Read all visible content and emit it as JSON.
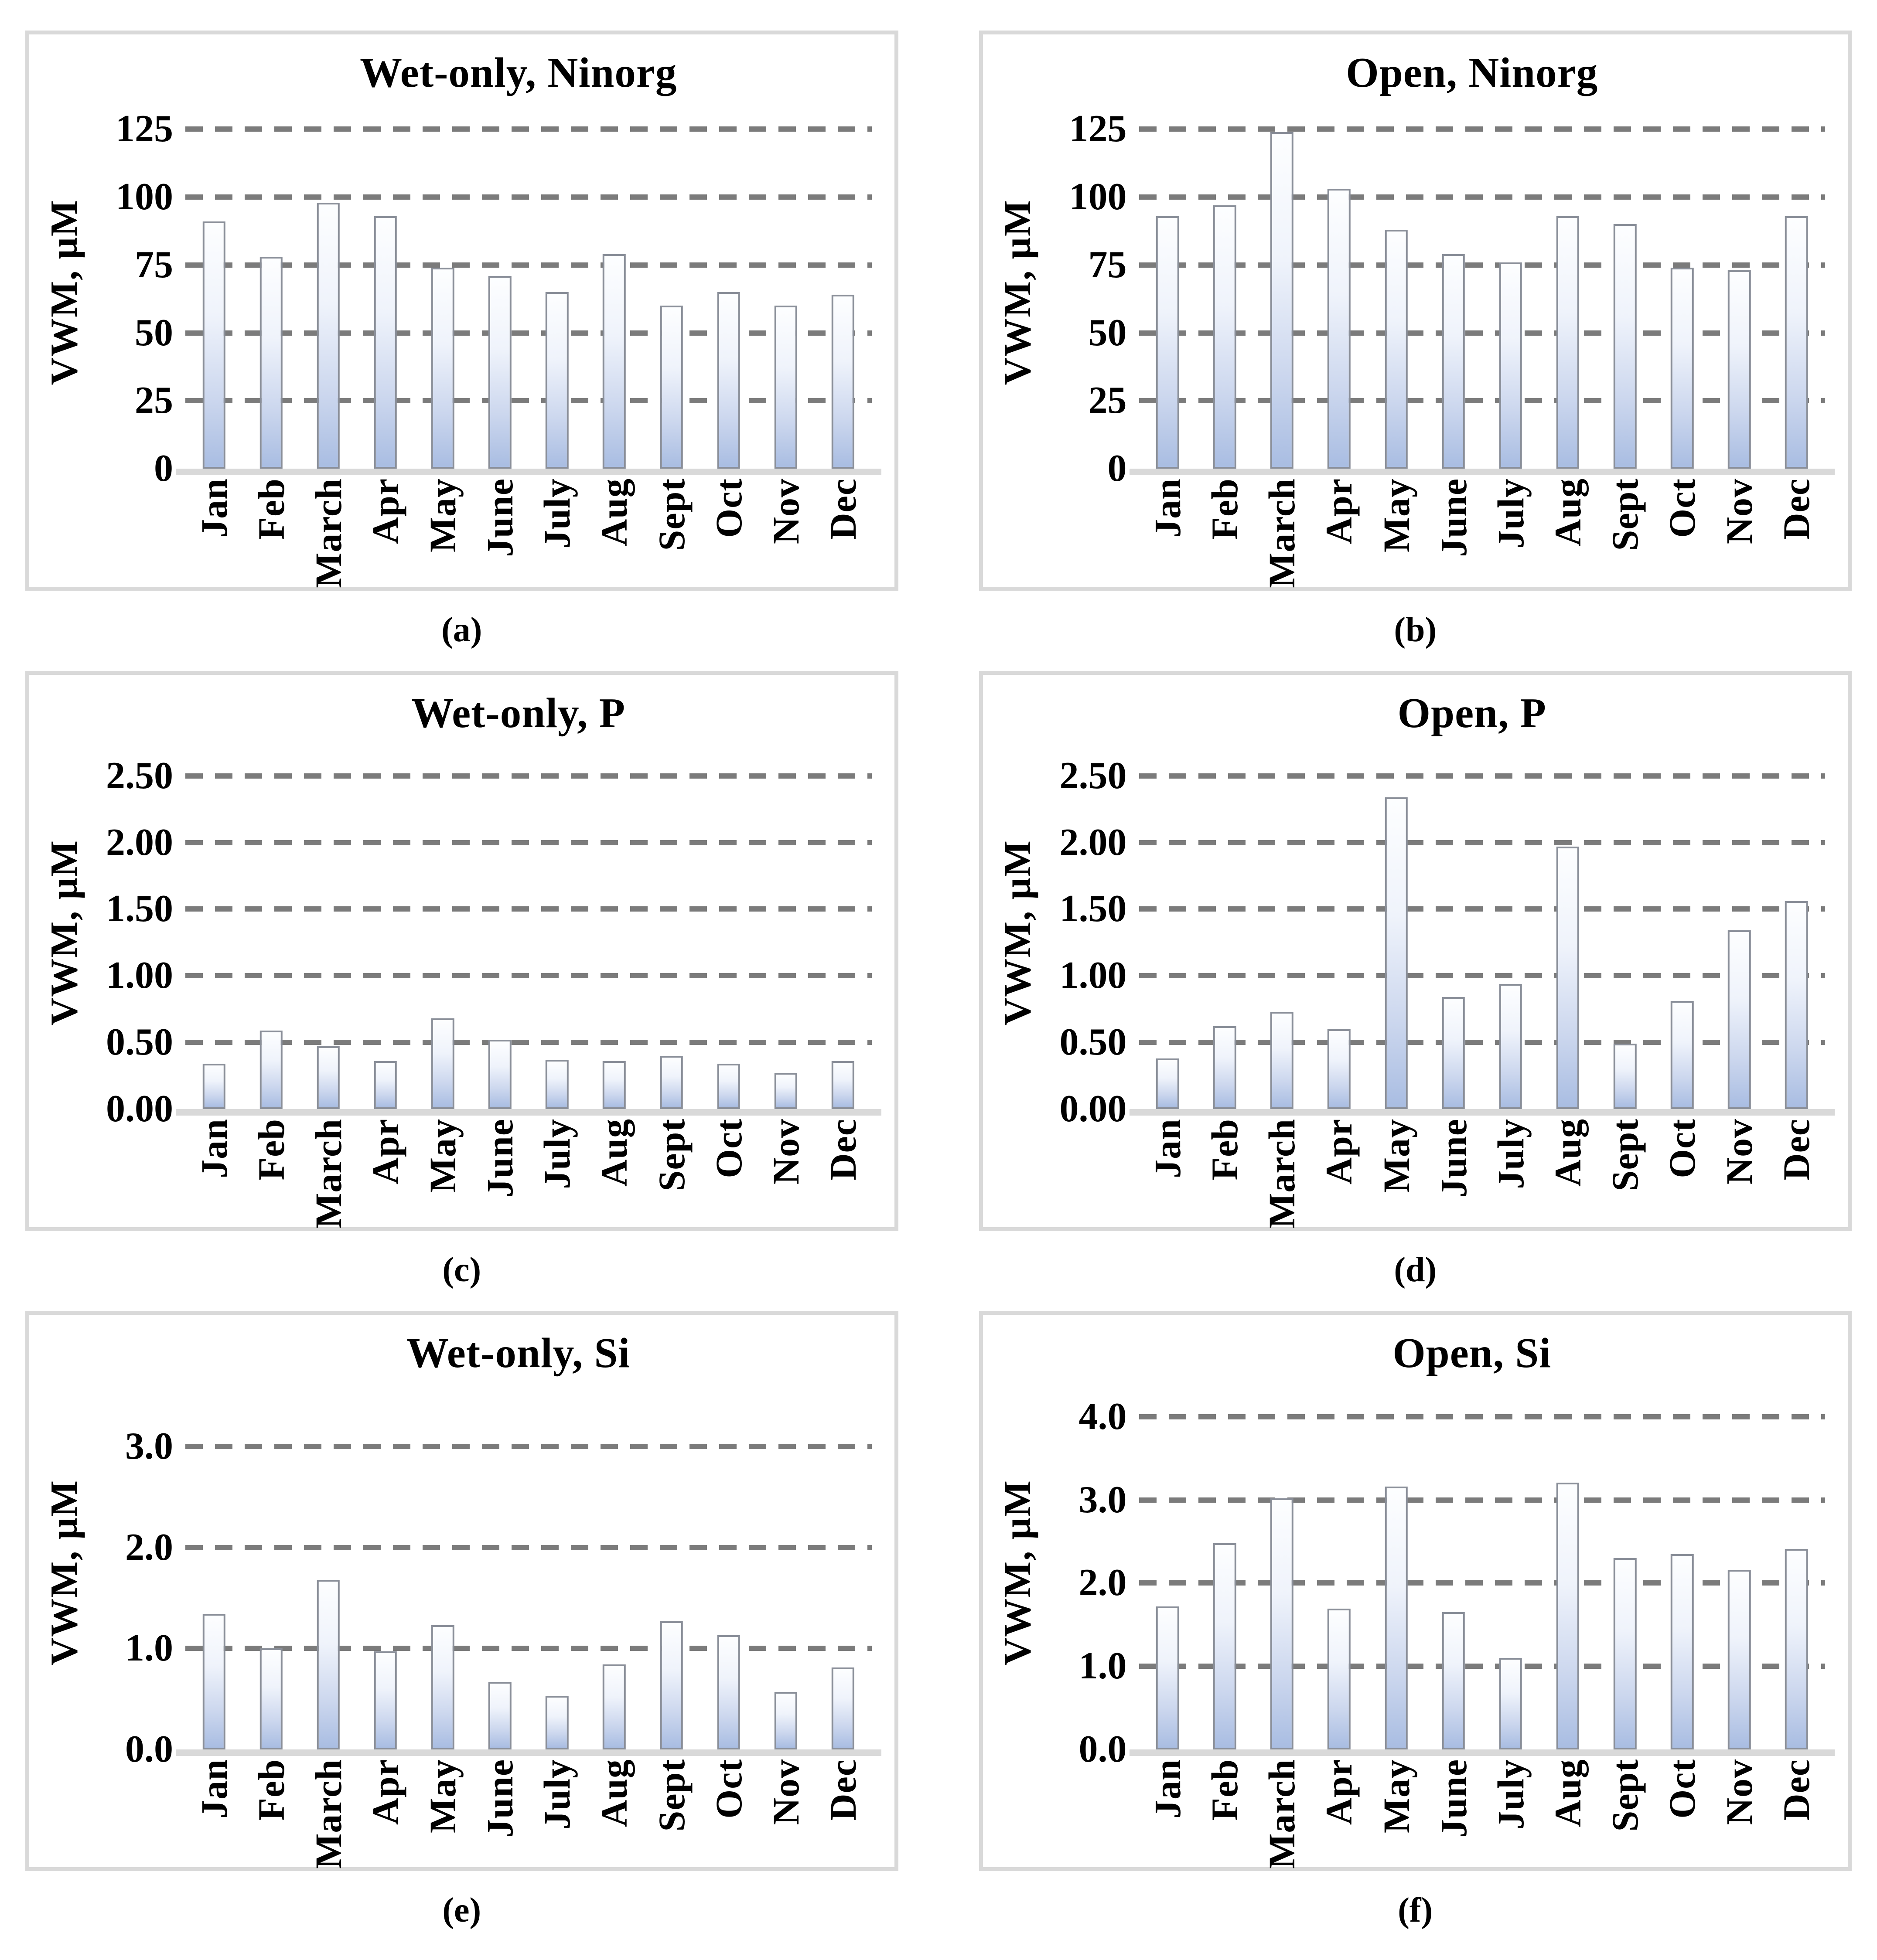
{
  "figure": {
    "ylabel": "VWM, µM",
    "months": [
      "Jan",
      "Feb",
      "March",
      "Apr",
      "May",
      "June",
      "July",
      "Aug",
      "Sept",
      "Oct",
      "Nov",
      "Dec"
    ]
  },
  "style": {
    "bar_gradient_top": "#fdfeff",
    "bar_gradient_bottom": "#a9bde2",
    "bar_border": "#8a8f99",
    "gridline_color": "#7b7b7b",
    "baseline_color": "#d9d9d9",
    "panel_border_color": "#d9d9d9",
    "text_color": "#000000"
  },
  "chart_data": [
    {
      "type": "bar",
      "panel": "a",
      "caption": "(a)",
      "title": "Wet-only, Ninorg",
      "xlabel": "",
      "ylabel": "VWM, µM",
      "categories": [
        "Jan",
        "Feb",
        "March",
        "Apr",
        "May",
        "June",
        "July",
        "Aug",
        "Sept",
        "Oct",
        "Nov",
        "Dec"
      ],
      "values": [
        91,
        78,
        98,
        93,
        74,
        71,
        65,
        79,
        60,
        65,
        60,
        64
      ],
      "yticks": [
        "0",
        "25",
        "50",
        "75",
        "100",
        "125"
      ],
      "ytick_values": [
        0,
        25,
        50,
        75,
        100,
        125
      ],
      "ylim": [
        0,
        130
      ],
      "grid": "dashed-horizontal",
      "legend": false
    },
    {
      "type": "bar",
      "panel": "b",
      "caption": "(b)",
      "title": "Open, Ninorg",
      "xlabel": "",
      "ylabel": "VWM, µM",
      "categories": [
        "Jan",
        "Feb",
        "March",
        "Apr",
        "May",
        "June",
        "July",
        "Aug",
        "Sept",
        "Oct",
        "Nov",
        "Dec"
      ],
      "values": [
        93,
        97,
        124,
        103,
        88,
        79,
        76,
        93,
        90,
        74,
        73,
        93
      ],
      "yticks": [
        "0",
        "25",
        "50",
        "75",
        "100",
        "125"
      ],
      "ytick_values": [
        0,
        25,
        50,
        75,
        100,
        125
      ],
      "ylim": [
        0,
        130
      ],
      "grid": "dashed-horizontal",
      "legend": false
    },
    {
      "type": "bar",
      "panel": "c",
      "caption": "(c)",
      "title": "Wet-only, P",
      "xlabel": "",
      "ylabel": "VWM, µM",
      "categories": [
        "Jan",
        "Feb",
        "March",
        "Apr",
        "May",
        "June",
        "July",
        "Aug",
        "Sept",
        "Oct",
        "Nov",
        "Dec"
      ],
      "values": [
        0.34,
        0.59,
        0.47,
        0.36,
        0.68,
        0.52,
        0.37,
        0.36,
        0.4,
        0.34,
        0.27,
        0.36
      ],
      "yticks": [
        "0.00",
        "0.50",
        "1.00",
        "1.50",
        "2.00",
        "2.50"
      ],
      "ytick_values": [
        0,
        0.5,
        1.0,
        1.5,
        2.0,
        2.5
      ],
      "ylim": [
        0,
        2.65
      ],
      "grid": "dashed-horizontal",
      "legend": false
    },
    {
      "type": "bar",
      "panel": "d",
      "caption": "(d)",
      "title": "Open, P",
      "xlabel": "",
      "ylabel": "VWM, µM",
      "categories": [
        "Jan",
        "Feb",
        "March",
        "Apr",
        "May",
        "June",
        "July",
        "Aug",
        "Sept",
        "Oct",
        "Nov",
        "Dec"
      ],
      "values": [
        0.38,
        0.62,
        0.73,
        0.6,
        2.34,
        0.84,
        0.94,
        1.97,
        0.49,
        0.81,
        1.34,
        1.56
      ],
      "yticks": [
        "0.00",
        "0.50",
        "1.00",
        "1.50",
        "2.00",
        "2.50"
      ],
      "ytick_values": [
        0,
        0.5,
        1.0,
        1.5,
        2.0,
        2.5
      ],
      "ylim": [
        0,
        2.65
      ],
      "grid": "dashed-horizontal",
      "legend": false
    },
    {
      "type": "bar",
      "panel": "e",
      "caption": "(e)",
      "title": "Wet-only, Si",
      "xlabel": "",
      "ylabel": "VWM, µM",
      "categories": [
        "Jan",
        "Feb",
        "March",
        "Apr",
        "May",
        "June",
        "July",
        "Aug",
        "Sept",
        "Oct",
        "Nov",
        "Dec"
      ],
      "values": [
        1.34,
        1.0,
        1.68,
        0.97,
        1.23,
        0.67,
        0.53,
        0.84,
        1.27,
        1.13,
        0.57,
        0.81
      ],
      "yticks": [
        "0.0",
        "1.0",
        "2.0",
        "3.0"
      ],
      "ytick_values": [
        0,
        1.0,
        2.0,
        3.0
      ],
      "ylim": [
        0,
        3.5
      ],
      "grid": "dashed-horizontal",
      "legend": false
    },
    {
      "type": "bar",
      "panel": "f",
      "caption": "(f)",
      "title": "Open, Si",
      "xlabel": "",
      "ylabel": "VWM, µM",
      "categories": [
        "Jan",
        "Feb",
        "March",
        "Apr",
        "May",
        "June",
        "July",
        "Aug",
        "Sept",
        "Oct",
        "Nov",
        "Dec"
      ],
      "values": [
        1.72,
        2.48,
        3.02,
        1.69,
        3.16,
        1.65,
        1.1,
        3.21,
        2.3,
        2.35,
        2.16,
        2.41
      ],
      "yticks": [
        "0.0",
        "1.0",
        "2.0",
        "3.0",
        "4.0"
      ],
      "ytick_values": [
        0,
        1.0,
        2.0,
        3.0,
        4.0
      ],
      "ylim": [
        0,
        4.25
      ],
      "grid": "dashed-horizontal",
      "legend": false
    }
  ]
}
